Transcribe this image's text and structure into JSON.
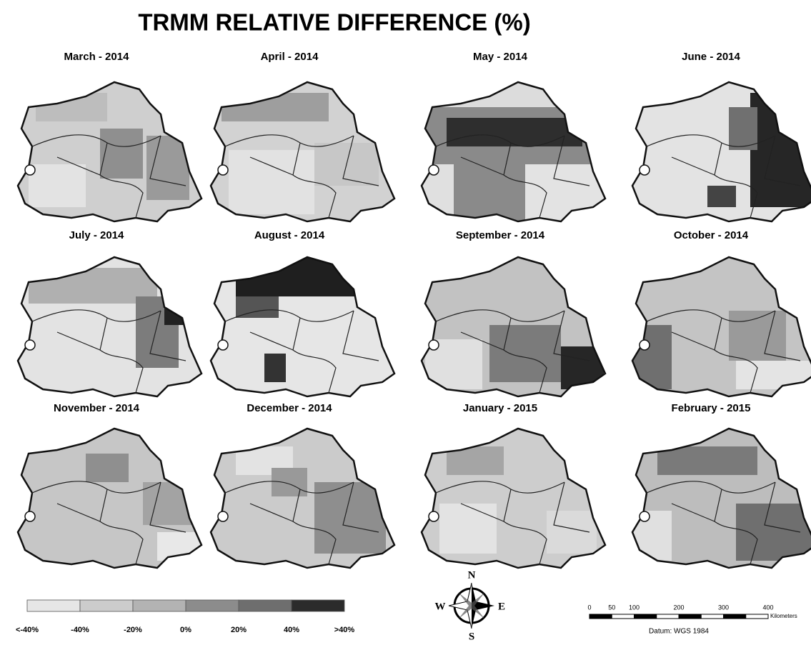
{
  "header": {
    "title": "TRMM RELATIVE DIFFERENCE (%)"
  },
  "panels": [
    {
      "label": "March - 2014"
    },
    {
      "label": "April - 2014"
    },
    {
      "label": "May - 2014"
    },
    {
      "label": "June - 2014"
    },
    {
      "label": "July - 2014"
    },
    {
      "label": "August - 2014"
    },
    {
      "label": "September - 2014"
    },
    {
      "label": "October - 2014"
    },
    {
      "label": "November - 2014"
    },
    {
      "label": "December - 2014"
    },
    {
      "label": "January - 2015"
    },
    {
      "label": "February - 2015"
    }
  ],
  "legend": {
    "colors": [
      "#e6e6e6",
      "#cccccc",
      "#b3b3b3",
      "#8c8c8c",
      "#6e6e6e",
      "#2b2b2b"
    ],
    "labels": [
      "<-40%",
      "-40%",
      "-20%",
      "0%",
      "20%",
      "40%",
      ">40%"
    ]
  },
  "compass": {
    "north": "N",
    "south": "S",
    "east": "E",
    "west": "W"
  },
  "scale_bar": {
    "labels": [
      "0",
      "50",
      "100",
      "200",
      "300",
      "400"
    ],
    "unit": "Kilometers",
    "datum": "Datum: WGS 1984"
  }
}
